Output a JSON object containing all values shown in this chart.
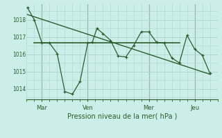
{
  "background_color": "#cceee8",
  "grid_color": "#aad4ce",
  "line_color": "#2a5c2a",
  "title": "Pression niveau de la mer( hPa )",
  "day_labels": [
    "Mar",
    "Ven",
    "Mer",
    "Jeu"
  ],
  "day_positions": [
    1,
    4,
    8,
    11
  ],
  "ylim": [
    1013.4,
    1018.9
  ],
  "yticks": [
    1014,
    1015,
    1016,
    1017,
    1018
  ],
  "xlim": [
    0,
    12.5
  ],
  "series1_x": [
    0.05,
    0.5,
    1.0,
    1.5,
    2.0,
    2.5,
    3.0,
    3.5,
    4.0,
    4.3,
    4.6,
    5.0,
    5.5,
    6.0,
    6.5,
    7.0,
    7.5,
    8.0,
    8.5,
    9.0,
    9.5,
    10.0,
    10.5,
    11.0,
    11.5,
    12.0
  ],
  "series1_y": [
    1018.7,
    1018.0,
    1016.65,
    1016.65,
    1016.05,
    1013.85,
    1013.7,
    1014.45,
    1016.65,
    1016.7,
    1017.5,
    1017.2,
    1016.8,
    1015.9,
    1015.85,
    1016.5,
    1017.3,
    1017.3,
    1016.7,
    1016.65,
    1015.8,
    1015.5,
    1017.1,
    1016.3,
    1015.95,
    1014.9
  ],
  "series2_x": [
    0.5,
    10.0
  ],
  "series2_y": [
    1016.65,
    1016.65
  ],
  "series3_x": [
    0.05,
    12.0
  ],
  "series3_y": [
    1018.3,
    1014.85
  ],
  "vline_positions": [
    1,
    4,
    8,
    11
  ],
  "figsize": [
    3.2,
    2.0
  ],
  "dpi": 100
}
